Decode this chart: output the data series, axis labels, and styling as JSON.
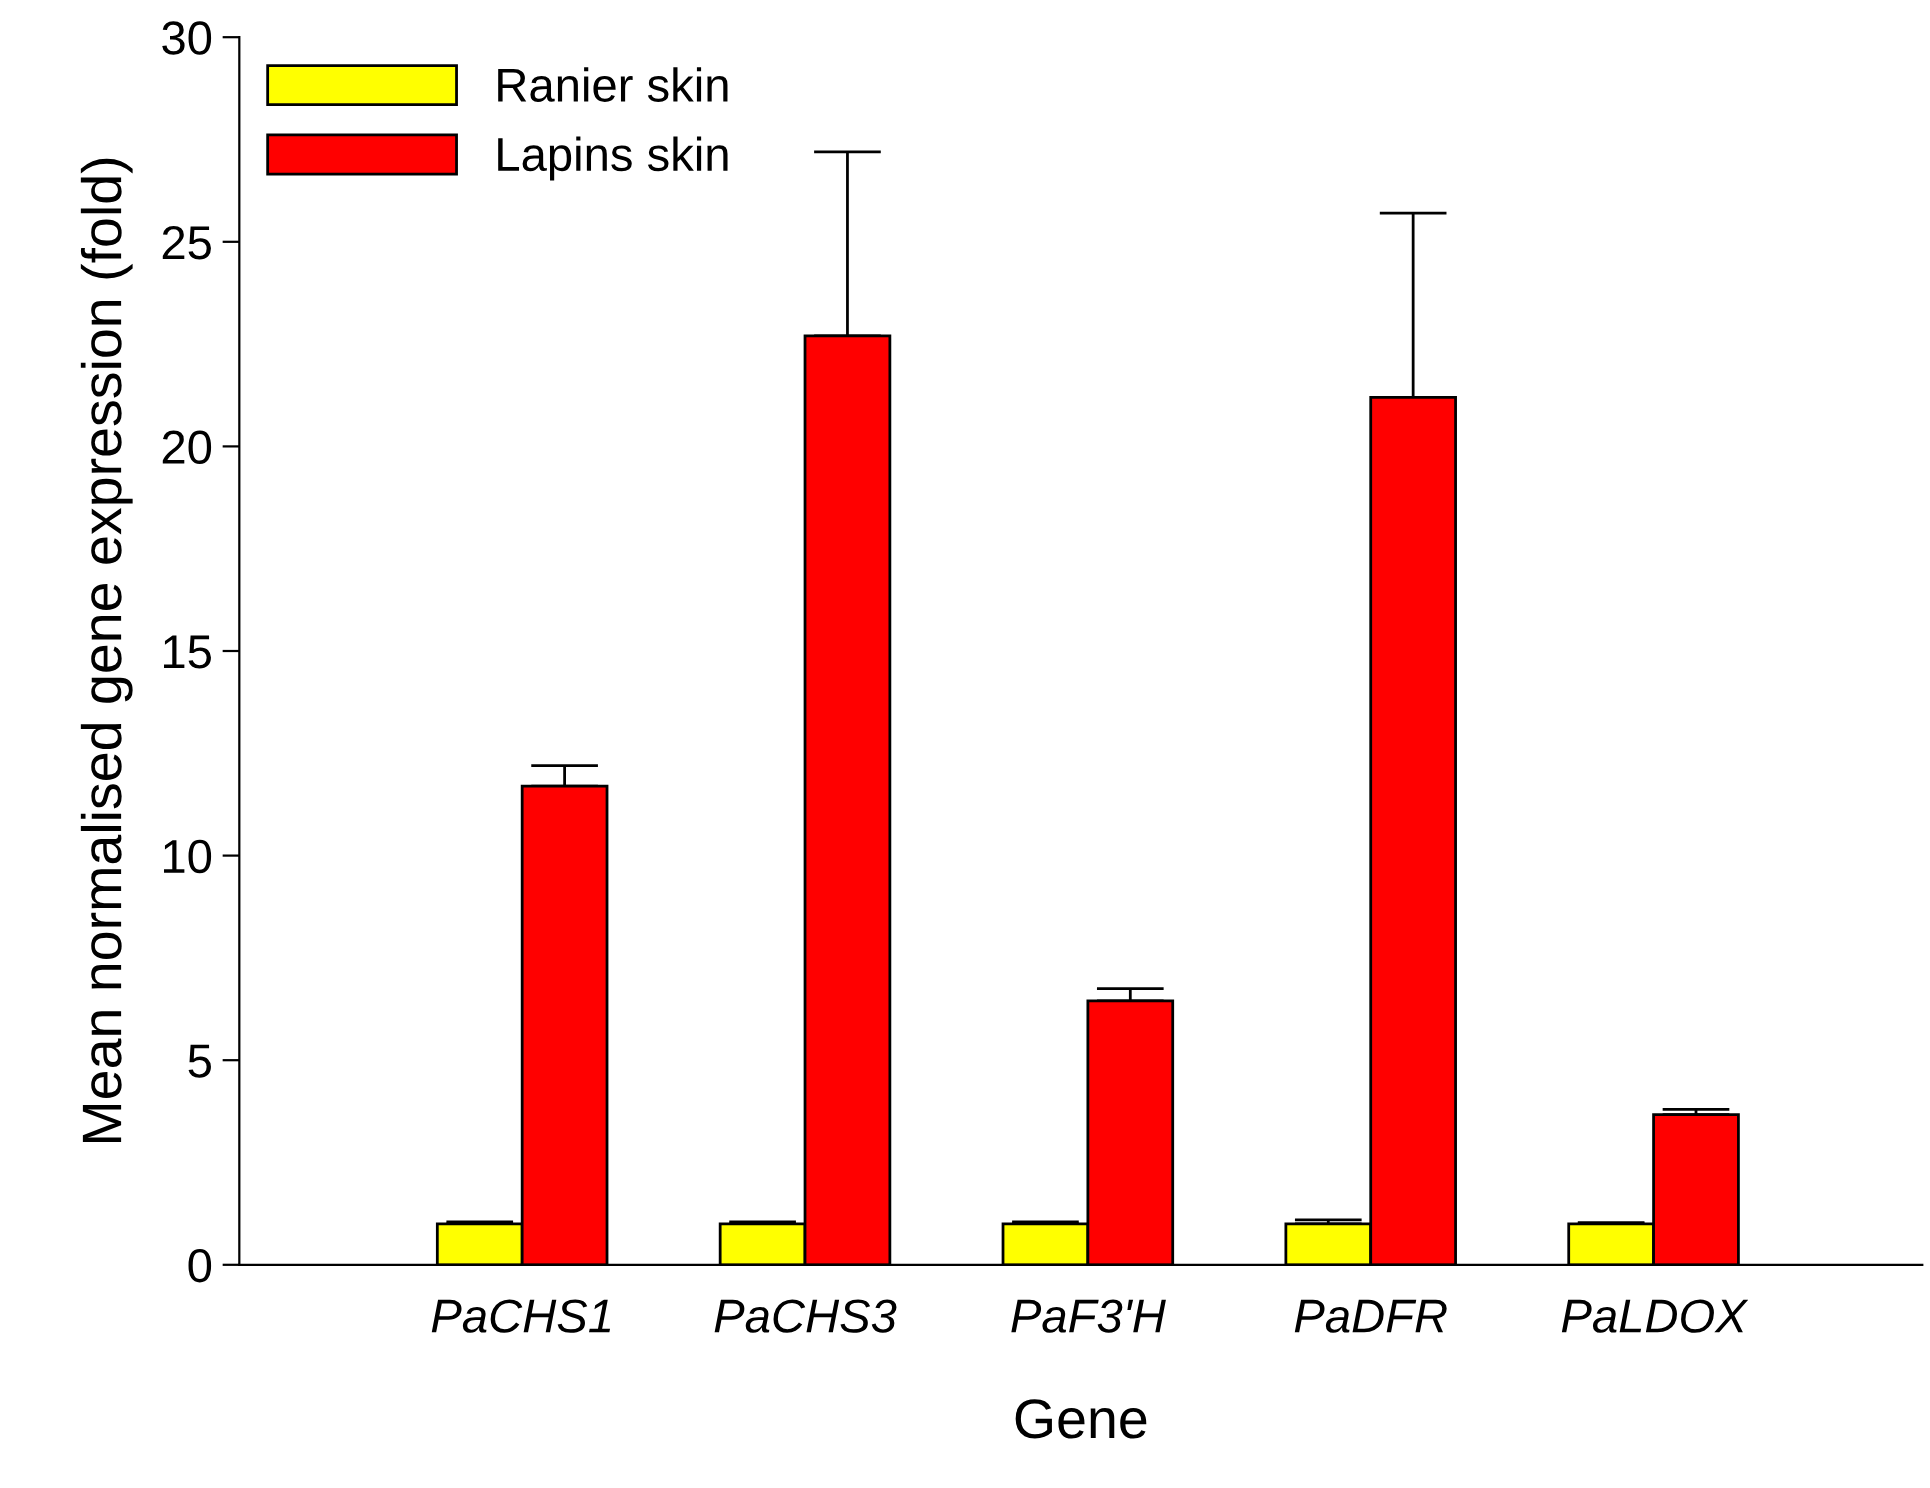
{
  "chart_data": {
    "type": "bar",
    "xlabel": "Gene",
    "ylabel": "Mean normalised gene expression (fold)",
    "categories": [
      "PaCHS1",
      "PaCHS3",
      "PaF3'H",
      "PaDFR",
      "PaLDOX"
    ],
    "series": [
      {
        "name": "Ranier skin",
        "color": "#ffff00",
        "values": [
          1.0,
          1.0,
          1.0,
          1.0,
          1.0
        ],
        "errors": [
          [
            1.0,
            1.05
          ],
          [
            1.0,
            1.05
          ],
          [
            1.0,
            1.05
          ],
          [
            1.0,
            1.1
          ],
          [
            1.0,
            1.03
          ]
        ]
      },
      {
        "name": "Lapins skin",
        "color": "#ff0000",
        "values": [
          11.7,
          22.7,
          6.45,
          21.2,
          3.67
        ],
        "errors": [
          [
            11.7,
            12.2
          ],
          [
            22.7,
            27.2
          ],
          [
            6.45,
            6.75
          ],
          [
            21.2,
            25.7
          ],
          [
            3.67,
            3.8
          ]
        ]
      }
    ],
    "ylim": [
      0,
      30
    ],
    "yticks": [
      0,
      5,
      10,
      15,
      20,
      25,
      30
    ],
    "grid": false,
    "legend": "top left"
  }
}
